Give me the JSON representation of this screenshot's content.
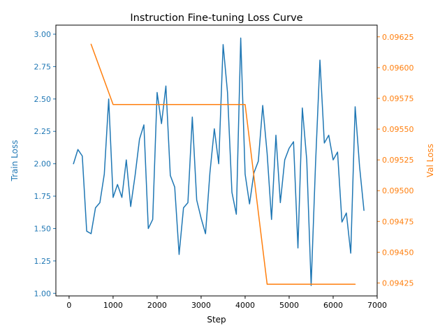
{
  "chart_data": {
    "type": "line",
    "title": "Instruction Fine-tuning Loss Curve",
    "xlabel": "Step",
    "xlim": [
      -300,
      7000
    ],
    "xticks": [
      0,
      1000,
      2000,
      3000,
      4000,
      5000,
      6000,
      7000
    ],
    "grid": false,
    "legend": "none",
    "left_axis": {
      "label": "Train Loss",
      "color": "#1f77b4",
      "ylim": [
        0.98,
        3.07
      ],
      "ticks": [
        1.0,
        1.25,
        1.5,
        1.75,
        2.0,
        2.25,
        2.5,
        2.75,
        3.0
      ],
      "tick_labels": [
        "1.00",
        "1.25",
        "1.50",
        "1.75",
        "2.00",
        "2.25",
        "2.50",
        "2.75",
        "3.00"
      ]
    },
    "right_axis": {
      "label": "Val Loss",
      "color": "#ff7f0e",
      "ylim": [
        0.094145,
        0.096345
      ],
      "ticks": [
        0.09425,
        0.0945,
        0.09475,
        0.095,
        0.09525,
        0.0955,
        0.09575,
        0.096,
        0.09625
      ],
      "tick_labels": [
        "0.09425",
        "0.09450",
        "0.09475",
        "0.09500",
        "0.09525",
        "0.09550",
        "0.09575",
        "0.09600",
        "0.09625"
      ]
    },
    "series": [
      {
        "axis": "left",
        "color": "#1f77b4",
        "x": [
          100,
          200,
          300,
          400,
          500,
          600,
          700,
          800,
          900,
          1000,
          1100,
          1200,
          1300,
          1400,
          1500,
          1600,
          1700,
          1800,
          1900,
          2000,
          2100,
          2200,
          2300,
          2400,
          2500,
          2600,
          2700,
          2800,
          2900,
          3000,
          3100,
          3200,
          3300,
          3400,
          3500,
          3600,
          3700,
          3800,
          3900,
          4000,
          4100,
          4200,
          4300,
          4400,
          4500,
          4600,
          4700,
          4800,
          4900,
          5000,
          5100,
          5200,
          5300,
          5400,
          5500,
          5600,
          5700,
          5800,
          5900,
          6000,
          6100,
          6200,
          6300,
          6400,
          6500,
          6600,
          6700
        ],
        "values": [
          2.0,
          2.11,
          2.06,
          1.48,
          1.46,
          1.66,
          1.7,
          1.92,
          2.5,
          1.74,
          1.84,
          1.74,
          2.03,
          1.67,
          1.91,
          2.19,
          2.3,
          1.5,
          1.57,
          2.55,
          2.31,
          2.6,
          1.91,
          1.82,
          1.3,
          1.66,
          1.7,
          2.36,
          1.72,
          1.58,
          1.46,
          1.93,
          2.27,
          2.0,
          2.92,
          2.55,
          1.78,
          1.61,
          2.97,
          1.92,
          1.69,
          1.93,
          2.02,
          2.45,
          2.08,
          1.57,
          2.22,
          1.7,
          2.03,
          2.12,
          2.17,
          1.35,
          2.43,
          2.03,
          1.06,
          2.0,
          2.8,
          2.16,
          2.22,
          2.03,
          2.09,
          1.55,
          1.62,
          1.31,
          2.44,
          1.98,
          1.64
        ]
      },
      {
        "axis": "right",
        "color": "#ff7f0e",
        "x": [
          500,
          1000,
          1500,
          2000,
          2500,
          3000,
          3500,
          4000,
          4500,
          5000,
          5500,
          6000,
          6500
        ],
        "values": [
          0.09619,
          0.0957,
          0.0957,
          0.0957,
          0.0957,
          0.0957,
          0.0957,
          0.0957,
          0.09424,
          0.09424,
          0.09424,
          0.09424,
          0.09424
        ]
      }
    ]
  }
}
